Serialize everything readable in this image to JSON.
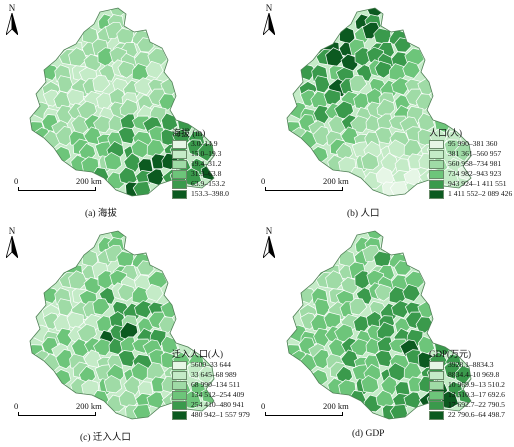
{
  "north_label": "N",
  "scale": {
    "zero": "0",
    "distance": "200 km"
  },
  "panels": [
    {
      "id": "a",
      "caption": "(a)  海拔",
      "legend_title": "海拔 (m)",
      "classes": [
        {
          "label": "3.0–14.9",
          "color": "#e6f6e6"
        },
        {
          "label": "15.0–19.3",
          "color": "#c4ebc7"
        },
        {
          "label": "19.4–31.2",
          "color": "#9fdba6"
        },
        {
          "label": "31.3–63.8",
          "color": "#6dc57a"
        },
        {
          "label": "63.9–153.2",
          "color": "#3a9a4c"
        },
        {
          "label": "153.3–398.0",
          "color": "#0c5a20"
        }
      ]
    },
    {
      "id": "b",
      "caption": "(b)  人口",
      "legend_title": "人口(人)",
      "classes": [
        {
          "label": "95 990–381 360",
          "color": "#e6f6e6"
        },
        {
          "label": "381 361–560 957",
          "color": "#c4ebc7"
        },
        {
          "label": "560 958–734 981",
          "color": "#9fdba6"
        },
        {
          "label": "734 982–943 923",
          "color": "#6dc57a"
        },
        {
          "label": "943 924–1 411 551",
          "color": "#3a9a4c"
        },
        {
          "label": "1 411 552–2 089 426",
          "color": "#0c5a20"
        }
      ]
    },
    {
      "id": "c",
      "caption": "(c)  迁入人口",
      "legend_title": "迁入人口(人)",
      "classes": [
        {
          "label": "5609–33 644",
          "color": "#e6f6e6"
        },
        {
          "label": "33 645–68 989",
          "color": "#c4ebc7"
        },
        {
          "label": "68 990–134 511",
          "color": "#9fdba6"
        },
        {
          "label": "134 512–254 409",
          "color": "#6dc57a"
        },
        {
          "label": "254 410–480 941",
          "color": "#3a9a4c"
        },
        {
          "label": "480 942–1 557 979",
          "color": "#0c5a20"
        }
      ]
    },
    {
      "id": "d",
      "caption": "(d)  GDP",
      "legend_title": "GDP(万元)",
      "classes": [
        {
          "label": "3928.1–8834.3",
          "color": "#e6f6e6"
        },
        {
          "label": "8834.4–10 969.8",
          "color": "#c4ebc7"
        },
        {
          "label": "10 969.9–13 510.2",
          "color": "#9fdba6"
        },
        {
          "label": "13 510.3–17 692.6",
          "color": "#6dc57a"
        },
        {
          "label": "17 692.7–22 790.5",
          "color": "#3a9a4c"
        },
        {
          "label": "22 790.6–64 498.7",
          "color": "#0c5a20"
        }
      ]
    }
  ]
}
